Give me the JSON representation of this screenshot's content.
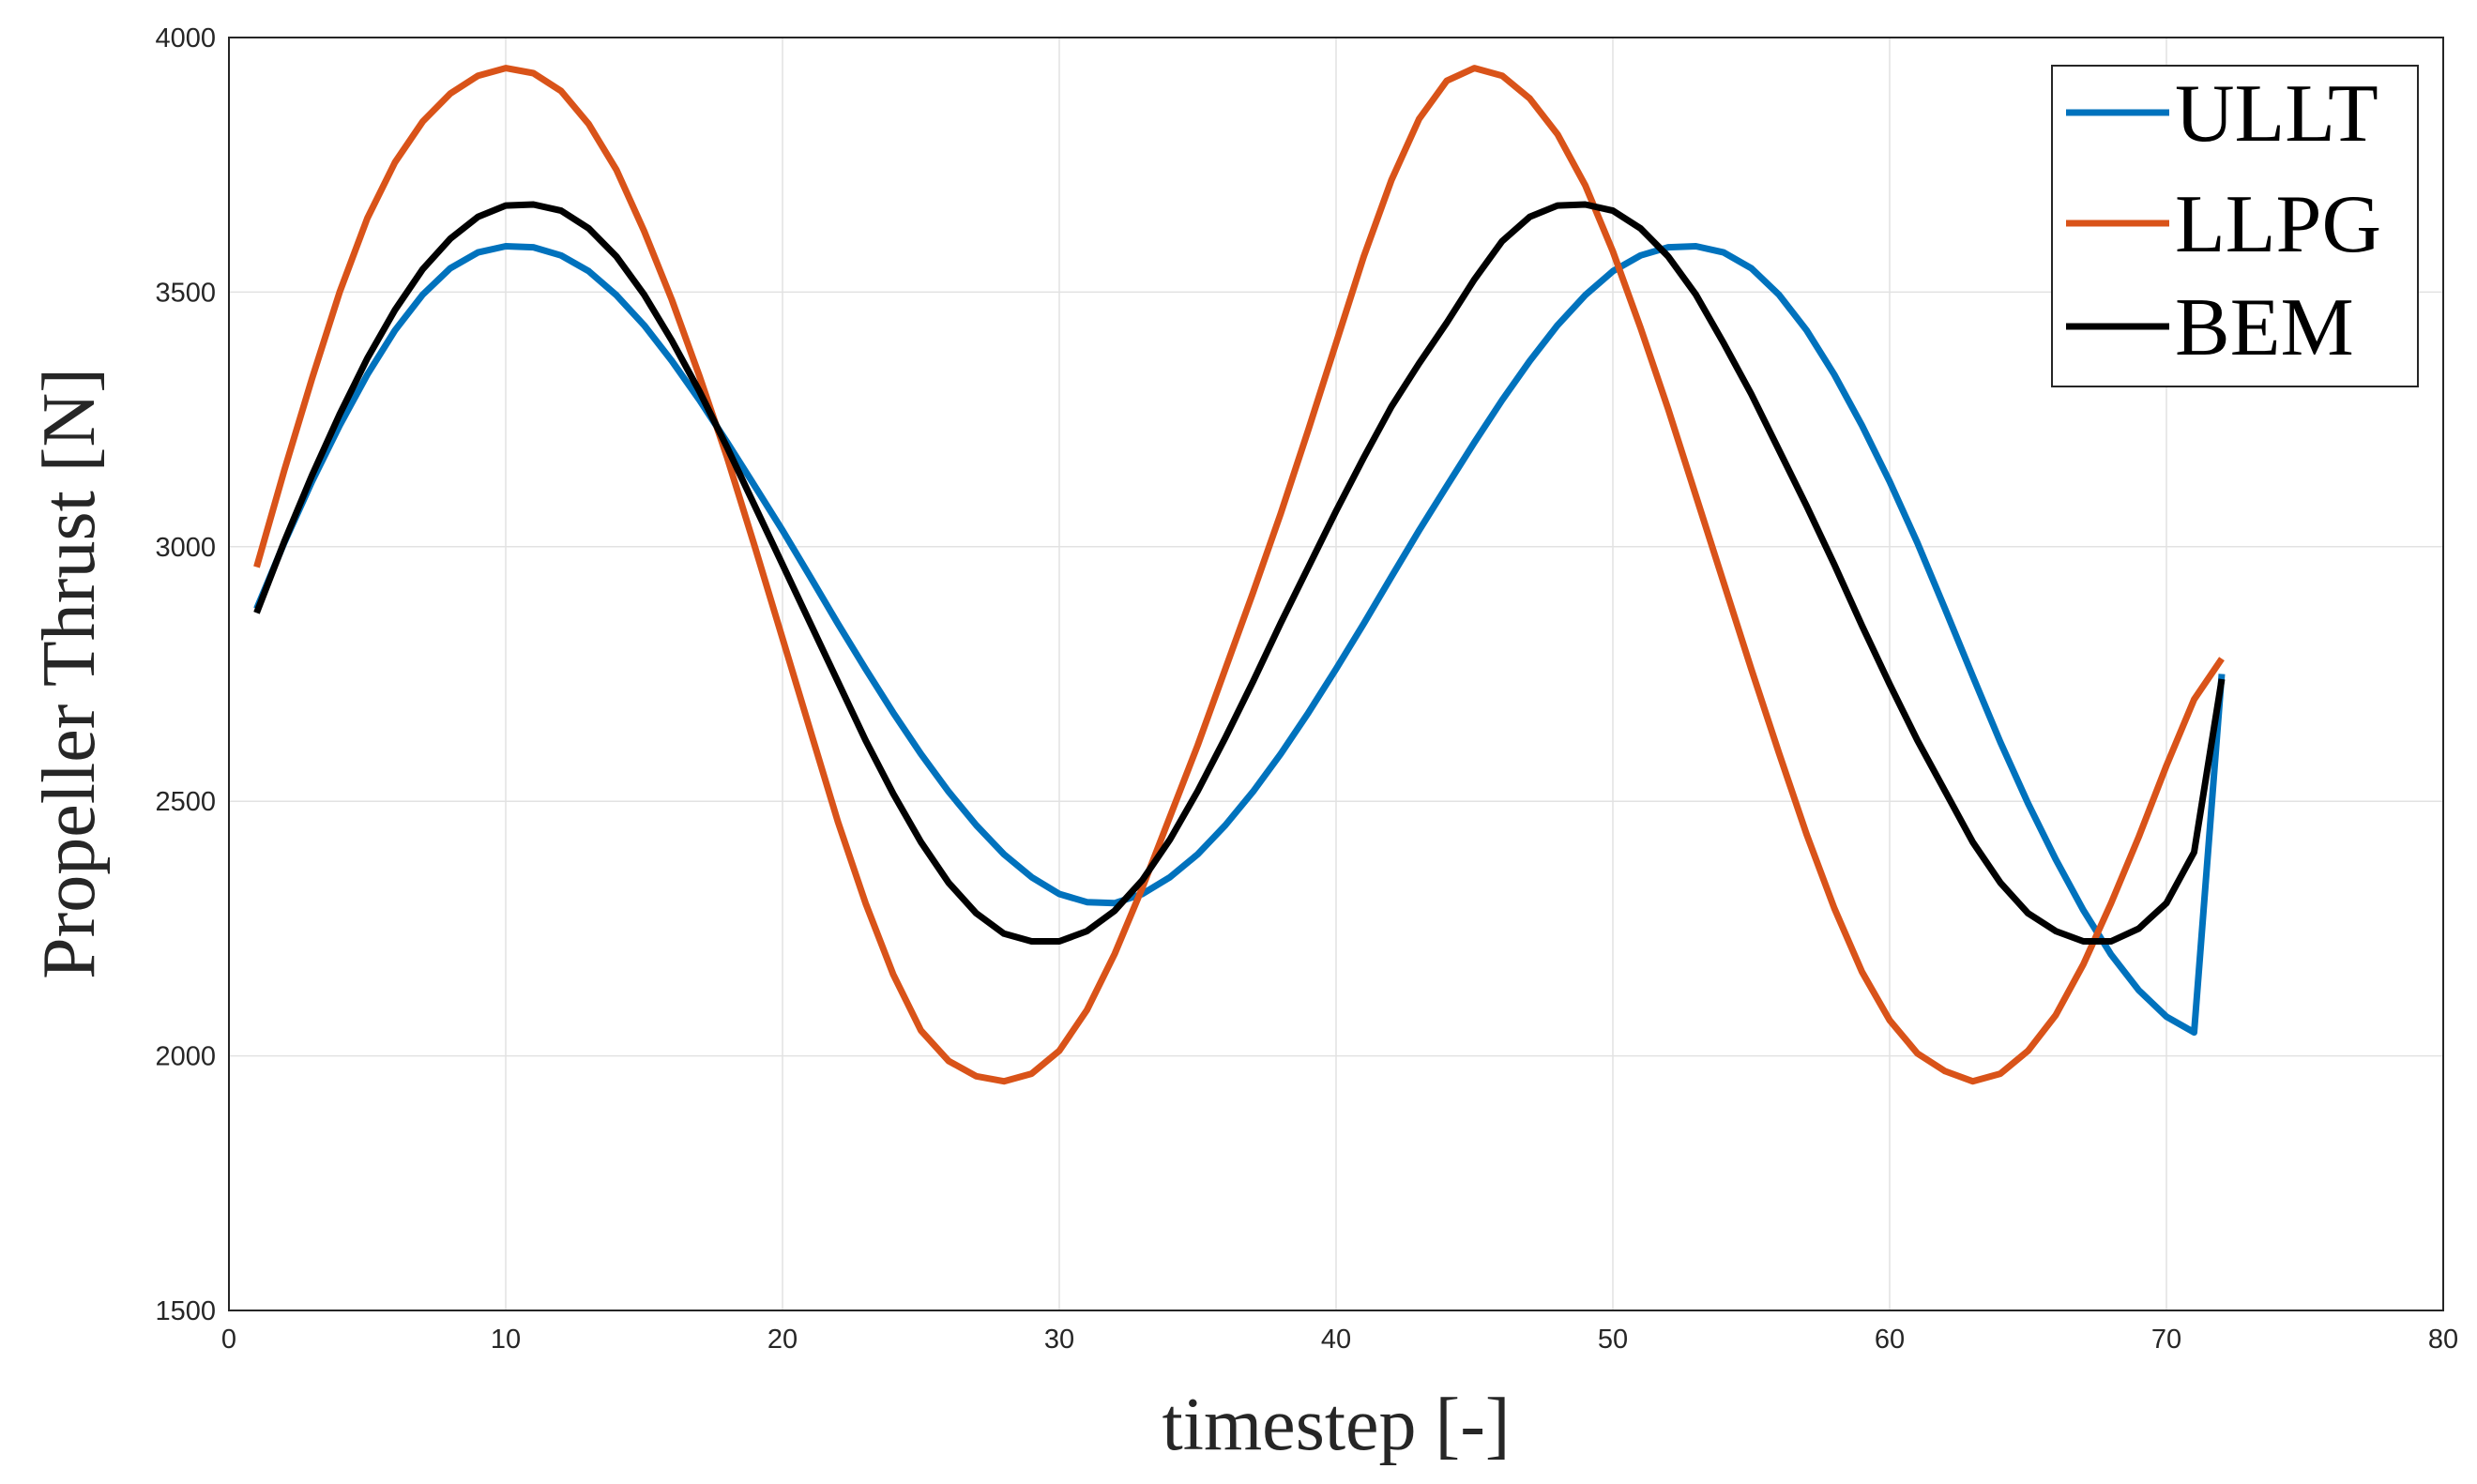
{
  "chart_data": {
    "type": "line",
    "xlabel": "timestep [-]",
    "ylabel": "Propeller Thrust [N]",
    "xlim": [
      0,
      80
    ],
    "ylim": [
      1500,
      4000
    ],
    "xticks": [
      0,
      10,
      20,
      30,
      40,
      50,
      60,
      70,
      80
    ],
    "yticks": [
      1500,
      2000,
      2500,
      3000,
      3500,
      4000
    ],
    "grid": true,
    "legend_position": "top-right",
    "x": [
      1,
      2,
      3,
      4,
      5,
      6,
      7,
      8,
      9,
      10,
      11,
      12,
      13,
      14,
      15,
      16,
      17,
      18,
      19,
      20,
      21,
      22,
      23,
      24,
      25,
      26,
      27,
      28,
      29,
      30,
      31,
      32,
      33,
      34,
      35,
      36,
      37,
      38,
      39,
      40,
      41,
      42,
      43,
      44,
      45,
      46,
      47,
      48,
      49,
      50,
      51,
      52,
      53,
      54,
      55,
      56,
      57,
      58,
      59,
      60,
      61,
      62,
      63,
      64,
      65,
      66,
      67,
      68,
      69,
      70,
      71,
      72
    ],
    "series": [
      {
        "name": "ULLT",
        "color": "#0072BD",
        "values": [
          2878,
          3008,
          3128,
          3238,
          3338,
          3425,
          3495,
          3547,
          3578,
          3590,
          3588,
          3572,
          3541,
          3494,
          3435,
          3365,
          3288,
          3205,
          3119,
          3032,
          2941,
          2849,
          2760,
          2674,
          2593,
          2519,
          2453,
          2396,
          2351,
          2318,
          2302,
          2300,
          2318,
          2351,
          2396,
          2453,
          2519,
          2593,
          2674,
          2760,
          2849,
          2941,
          3032,
          3119,
          3205,
          3288,
          3365,
          3435,
          3494,
          3541,
          3572,
          3588,
          3590,
          3578,
          3547,
          3495,
          3425,
          3338,
          3238,
          3128,
          3008,
          2878,
          2746,
          2616,
          2496,
          2386,
          2286,
          2199,
          2129,
          2077,
          2046,
          2750
        ]
      },
      {
        "name": "LLPG",
        "color": "#D95319",
        "values": [
          2960,
          3150,
          3330,
          3500,
          3645,
          3755,
          3835,
          3890,
          3925,
          3940,
          3930,
          3895,
          3830,
          3740,
          3620,
          3485,
          3335,
          3175,
          3000,
          2820,
          2640,
          2460,
          2300,
          2160,
          2050,
          1990,
          1960,
          1950,
          1965,
          2010,
          2090,
          2200,
          2330,
          2470,
          2610,
          2760,
          2910,
          3065,
          3230,
          3400,
          3570,
          3720,
          3840,
          3915,
          3940,
          3925,
          3880,
          3810,
          3710,
          3580,
          3430,
          3270,
          3100,
          2930,
          2760,
          2595,
          2435,
          2290,
          2165,
          2070,
          2005,
          1970,
          1950,
          1965,
          2010,
          2080,
          2180,
          2300,
          2430,
          2570,
          2700,
          2780
        ]
      },
      {
        "name": "BEM",
        "color": "#000000",
        "values": [
          2870,
          3010,
          3140,
          3260,
          3370,
          3465,
          3545,
          3605,
          3648,
          3670,
          3672,
          3660,
          3625,
          3570,
          3495,
          3405,
          3305,
          3195,
          3080,
          2965,
          2850,
          2735,
          2620,
          2515,
          2420,
          2340,
          2280,
          2240,
          2225,
          2225,
          2245,
          2285,
          2345,
          2425,
          2520,
          2625,
          2735,
          2850,
          2960,
          3070,
          3175,
          3275,
          3360,
          3440,
          3525,
          3600,
          3648,
          3670,
          3672,
          3660,
          3625,
          3570,
          3495,
          3400,
          3300,
          3190,
          3080,
          2965,
          2845,
          2730,
          2620,
          2520,
          2420,
          2340,
          2280,
          2245,
          2225,
          2225,
          2250,
          2300,
          2400,
          2740
        ]
      }
    ]
  }
}
